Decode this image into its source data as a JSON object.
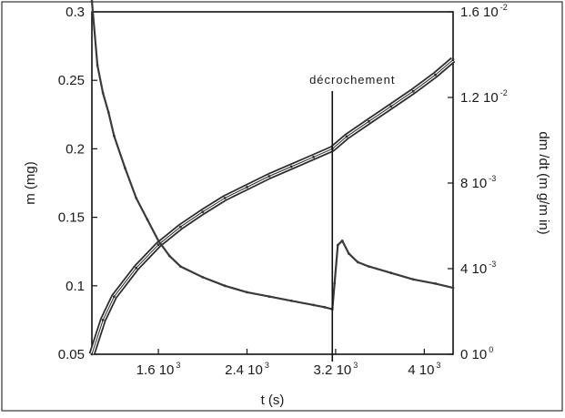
{
  "chart_data": {
    "type": "line",
    "title": "",
    "xlabel": "t (s)",
    "ylabel": "m (mg)",
    "y2label": "dm /dt (m g/m in)",
    "xlim": [
      1000,
      4260
    ],
    "ylim": [
      0.05,
      0.3
    ],
    "y2lim": [
      0,
      0.016
    ],
    "x_ticks": [
      {
        "value": 1600,
        "mantissa": "1.6 10",
        "exponent": "3"
      },
      {
        "value": 2400,
        "mantissa": "2.4 10",
        "exponent": "3"
      },
      {
        "value": 3200,
        "mantissa": "3.2 10",
        "exponent": "3"
      },
      {
        "value": 4000,
        "mantissa": "4 10",
        "exponent": "3"
      }
    ],
    "y_ticks": [
      {
        "value": 0.05,
        "label": "0.05"
      },
      {
        "value": 0.1,
        "label": "0.1"
      },
      {
        "value": 0.15,
        "label": "0.15"
      },
      {
        "value": 0.2,
        "label": "0.2"
      },
      {
        "value": 0.25,
        "label": "0.25"
      },
      {
        "value": 0.3,
        "label": "0.3"
      }
    ],
    "y2_ticks": [
      {
        "value": 0,
        "mantissa": "0 10",
        "exponent": "0"
      },
      {
        "value": 0.004,
        "mantissa": "4 10",
        "exponent": "-3"
      },
      {
        "value": 0.008,
        "mantissa": "8 10",
        "exponent": "-3"
      },
      {
        "value": 0.012,
        "mantissa": "1.2 10",
        "exponent": "-2"
      },
      {
        "value": 0.016,
        "mantissa": "1.6 10",
        "exponent": "-2"
      }
    ],
    "grid": false,
    "annotation": {
      "text": "décrochement",
      "x": 3170
    },
    "series": [
      {
        "axis": "left",
        "color": "#2a2a2a",
        "x": [
          1000,
          1100,
          1200,
          1400,
          1600,
          1800,
          2000,
          2200,
          2400,
          2600,
          2800,
          3000,
          3170,
          3300,
          3500,
          3700,
          3900,
          4100,
          4260
        ],
        "y": [
          0.05,
          0.075,
          0.092,
          0.113,
          0.13,
          0.143,
          0.154,
          0.164,
          0.172,
          0.18,
          0.187,
          0.194,
          0.2,
          0.209,
          0.22,
          0.231,
          0.242,
          0.254,
          0.265
        ]
      },
      {
        "axis": "right",
        "color": "#3a3a3a",
        "x": [
          1000,
          1050,
          1100,
          1150,
          1200,
          1300,
          1400,
          1500,
          1600,
          1700,
          1800,
          2000,
          2200,
          2400,
          2600,
          2800,
          3000,
          3100,
          3170,
          3190,
          3220,
          3260,
          3320,
          3400,
          3500,
          3700,
          3900,
          4100,
          4260
        ],
        "y": [
          0.0165,
          0.0135,
          0.0122,
          0.0113,
          0.0102,
          0.0087,
          0.0073,
          0.0063,
          0.0053,
          0.0046,
          0.0041,
          0.0036,
          0.0032,
          0.0029,
          0.0027,
          0.0025,
          0.0023,
          0.0022,
          0.0021,
          0.0033,
          0.0051,
          0.0053,
          0.0047,
          0.0043,
          0.0041,
          0.0038,
          0.0035,
          0.0033,
          0.0031
        ]
      }
    ]
  }
}
